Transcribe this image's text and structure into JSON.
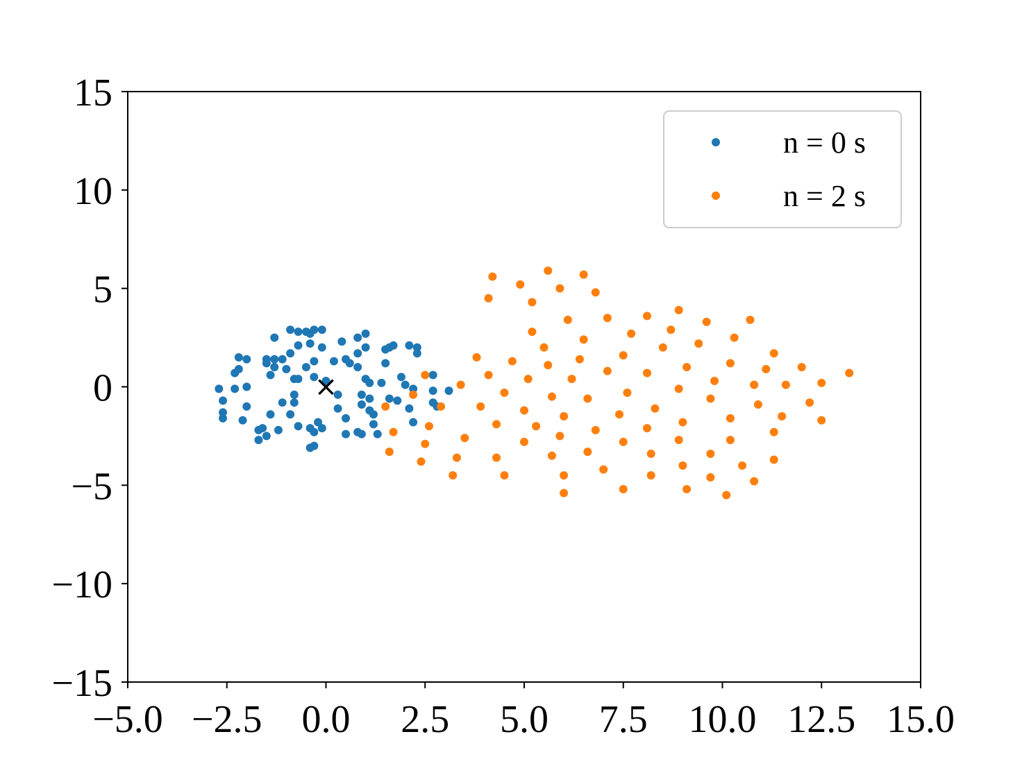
{
  "chart_data": {
    "type": "scatter",
    "title": "",
    "xlabel": "",
    "ylabel": "",
    "xlim": [
      -5.0,
      15.0
    ],
    "ylim": [
      -15,
      15
    ],
    "xticks": [
      -5.0,
      -2.5,
      0.0,
      2.5,
      5.0,
      7.5,
      10.0,
      12.5,
      15.0
    ],
    "xtick_labels": [
      "−5.0",
      "−2.5",
      "0.0",
      "2.5",
      "5.0",
      "7.5",
      "10.0",
      "12.5",
      "15.0"
    ],
    "yticks": [
      15,
      10,
      5,
      0,
      -5,
      -10,
      -15
    ],
    "ytick_labels": [
      "15",
      "10",
      "5",
      "0",
      "−5",
      "−10",
      "−15"
    ],
    "grid": false,
    "legend_position": "top-right",
    "series": [
      {
        "name": "n = 0 s",
        "color": "#1f77b4",
        "points": [
          [
            -2.7,
            -0.1
          ],
          [
            -2.6,
            -0.7
          ],
          [
            -2.6,
            -1.3
          ],
          [
            -2.6,
            -1.6
          ],
          [
            -2.3,
            0.7
          ],
          [
            -2.3,
            -0.1
          ],
          [
            -2.2,
            1.5
          ],
          [
            -2.2,
            0.9
          ],
          [
            -2.1,
            -1.7
          ],
          [
            -2.0,
            1.4
          ],
          [
            -2.0,
            0.0
          ],
          [
            -2.0,
            -1.0
          ],
          [
            -1.7,
            -2.2
          ],
          [
            -1.7,
            -2.7
          ],
          [
            -1.6,
            -2.1
          ],
          [
            -1.5,
            -2.5
          ],
          [
            -1.5,
            1.2
          ],
          [
            -1.5,
            1.4
          ],
          [
            -1.4,
            0.6
          ],
          [
            -1.4,
            -1.4
          ],
          [
            -1.3,
            2.5
          ],
          [
            -1.3,
            1.4
          ],
          [
            -1.3,
            1.0
          ],
          [
            -1.2,
            -2.2
          ],
          [
            -1.1,
            1.4
          ],
          [
            -1.1,
            -0.8
          ],
          [
            -1.0,
            0.9
          ],
          [
            -0.9,
            1.7
          ],
          [
            -0.9,
            2.9
          ],
          [
            -0.9,
            -1.4
          ],
          [
            -0.8,
            0.4
          ],
          [
            -0.7,
            0.4
          ],
          [
            -0.8,
            -0.4
          ],
          [
            -0.8,
            -0.8
          ],
          [
            -0.7,
            2.1
          ],
          [
            -0.7,
            2.8
          ],
          [
            -0.7,
            -2.0
          ],
          [
            -0.5,
            1.0
          ],
          [
            -0.5,
            2.8
          ],
          [
            -0.4,
            2.7
          ],
          [
            -0.4,
            2.2
          ],
          [
            -0.4,
            -3.1
          ],
          [
            -0.4,
            -2.1
          ],
          [
            -0.3,
            -3.0
          ],
          [
            -0.3,
            -2.3
          ],
          [
            -0.3,
            2.9
          ],
          [
            -0.3,
            1.3
          ],
          [
            -0.3,
            0.5
          ],
          [
            -0.2,
            -1.8
          ],
          [
            -0.1,
            -2.1
          ],
          [
            -0.1,
            2.9
          ],
          [
            -0.1,
            2.0
          ],
          [
            0.0,
            0.3
          ],
          [
            0.2,
            1.3
          ],
          [
            0.3,
            -0.4
          ],
          [
            0.3,
            -1.1
          ],
          [
            0.4,
            2.3
          ],
          [
            0.5,
            -1.6
          ],
          [
            0.5,
            -2.4
          ],
          [
            0.5,
            1.4
          ],
          [
            0.6,
            1.2
          ],
          [
            0.8,
            1.7
          ],
          [
            0.8,
            2.5
          ],
          [
            0.8,
            -2.3
          ],
          [
            0.8,
            1.0
          ],
          [
            0.9,
            -2.4
          ],
          [
            0.9,
            -0.4
          ],
          [
            0.9,
            -0.9
          ],
          [
            1.0,
            2.7
          ],
          [
            1.0,
            2.0
          ],
          [
            1.0,
            0.4
          ],
          [
            1.1,
            0.2
          ],
          [
            1.1,
            -1.2
          ],
          [
            1.1,
            -0.6
          ],
          [
            1.2,
            -1.4
          ],
          [
            1.2,
            -1.9
          ],
          [
            1.3,
            -2.4
          ],
          [
            1.4,
            0.2
          ],
          [
            1.5,
            1.2
          ],
          [
            1.5,
            1.9
          ],
          [
            1.6,
            -0.6
          ],
          [
            1.6,
            2.0
          ],
          [
            1.7,
            2.1
          ],
          [
            1.8,
            -0.7
          ],
          [
            1.9,
            0.5
          ],
          [
            2.0,
            0.1
          ],
          [
            2.1,
            -1.1
          ],
          [
            2.1,
            2.1
          ],
          [
            2.2,
            -0.1
          ],
          [
            2.2,
            -1.8
          ],
          [
            2.3,
            1.7
          ],
          [
            2.3,
            2.0
          ],
          [
            2.7,
            0.6
          ],
          [
            2.7,
            -0.2
          ],
          [
            2.7,
            -0.8
          ],
          [
            2.8,
            -1.0
          ],
          [
            3.1,
            -0.2
          ]
        ]
      },
      {
        "name": "n = 2 s",
        "color": "#ff7f0e",
        "points": [
          [
            4.2,
            5.6
          ],
          [
            4.1,
            4.5
          ],
          [
            4.9,
            5.2
          ],
          [
            5.6,
            5.9
          ],
          [
            5.9,
            5.0
          ],
          [
            6.5,
            5.7
          ],
          [
            5.2,
            4.3
          ],
          [
            6.8,
            4.8
          ],
          [
            6.1,
            3.4
          ],
          [
            7.1,
            3.5
          ],
          [
            8.1,
            3.6
          ],
          [
            8.9,
            3.9
          ],
          [
            9.6,
            3.3
          ],
          [
            10.7,
            3.4
          ],
          [
            5.2,
            2.8
          ],
          [
            6.5,
            2.4
          ],
          [
            7.7,
            2.7
          ],
          [
            8.7,
            2.9
          ],
          [
            10.3,
            2.5
          ],
          [
            5.5,
            2.0
          ],
          [
            8.5,
            2.0
          ],
          [
            9.4,
            2.2
          ],
          [
            3.8,
            1.5
          ],
          [
            4.7,
            1.3
          ],
          [
            6.4,
            1.4
          ],
          [
            7.5,
            1.6
          ],
          [
            11.3,
            1.7
          ],
          [
            5.6,
            1.1
          ],
          [
            9.1,
            1.0
          ],
          [
            10.2,
            1.2
          ],
          [
            11.1,
            0.9
          ],
          [
            12.0,
            1.0
          ],
          [
            13.2,
            0.7
          ],
          [
            4.1,
            0.6
          ],
          [
            5.1,
            0.4
          ],
          [
            6.2,
            0.4
          ],
          [
            7.1,
            0.8
          ],
          [
            8.1,
            0.7
          ],
          [
            9.8,
            0.3
          ],
          [
            10.8,
            0.1
          ],
          [
            11.6,
            0.1
          ],
          [
            12.5,
            0.2
          ],
          [
            2.5,
            0.6
          ],
          [
            3.4,
            0.1
          ],
          [
            2.2,
            -0.4
          ],
          [
            4.5,
            -0.3
          ],
          [
            5.7,
            -0.5
          ],
          [
            6.6,
            -0.6
          ],
          [
            7.6,
            -0.3
          ],
          [
            8.9,
            -0.1
          ],
          [
            9.7,
            -0.6
          ],
          [
            10.9,
            -0.9
          ],
          [
            12.2,
            -0.8
          ],
          [
            1.5,
            -1.0
          ],
          [
            2.9,
            -1.0
          ],
          [
            3.9,
            -1.0
          ],
          [
            5.0,
            -1.2
          ],
          [
            6.0,
            -1.5
          ],
          [
            7.4,
            -1.4
          ],
          [
            8.3,
            -1.1
          ],
          [
            9.0,
            -1.8
          ],
          [
            10.2,
            -1.6
          ],
          [
            11.5,
            -1.5
          ],
          [
            12.5,
            -1.7
          ],
          [
            2.6,
            -2.0
          ],
          [
            4.3,
            -1.9
          ],
          [
            5.3,
            -2.0
          ],
          [
            6.8,
            -2.2
          ],
          [
            8.1,
            -2.1
          ],
          [
            1.7,
            -2.3
          ],
          [
            3.5,
            -2.6
          ],
          [
            5.0,
            -2.8
          ],
          [
            5.9,
            -2.5
          ],
          [
            7.5,
            -2.8
          ],
          [
            8.9,
            -2.7
          ],
          [
            10.2,
            -2.7
          ],
          [
            11.3,
            -2.3
          ],
          [
            2.5,
            -2.9
          ],
          [
            1.6,
            -3.3
          ],
          [
            3.3,
            -3.6
          ],
          [
            4.3,
            -3.6
          ],
          [
            5.7,
            -3.5
          ],
          [
            6.6,
            -3.3
          ],
          [
            8.2,
            -3.4
          ],
          [
            9.7,
            -3.4
          ],
          [
            2.4,
            -3.8
          ],
          [
            9.0,
            -4.0
          ],
          [
            10.5,
            -4.0
          ],
          [
            11.3,
            -3.7
          ],
          [
            3.2,
            -4.5
          ],
          [
            4.5,
            -4.5
          ],
          [
            6.0,
            -4.5
          ],
          [
            7.0,
            -4.2
          ],
          [
            8.2,
            -4.5
          ],
          [
            9.7,
            -4.6
          ],
          [
            10.8,
            -4.8
          ],
          [
            6.0,
            -5.4
          ],
          [
            7.5,
            -5.2
          ],
          [
            9.1,
            -5.2
          ],
          [
            10.1,
            -5.5
          ]
        ]
      }
    ],
    "markers": [
      {
        "symbol": "×",
        "x": 0.0,
        "y": 0.0,
        "color": "#000000"
      }
    ]
  }
}
